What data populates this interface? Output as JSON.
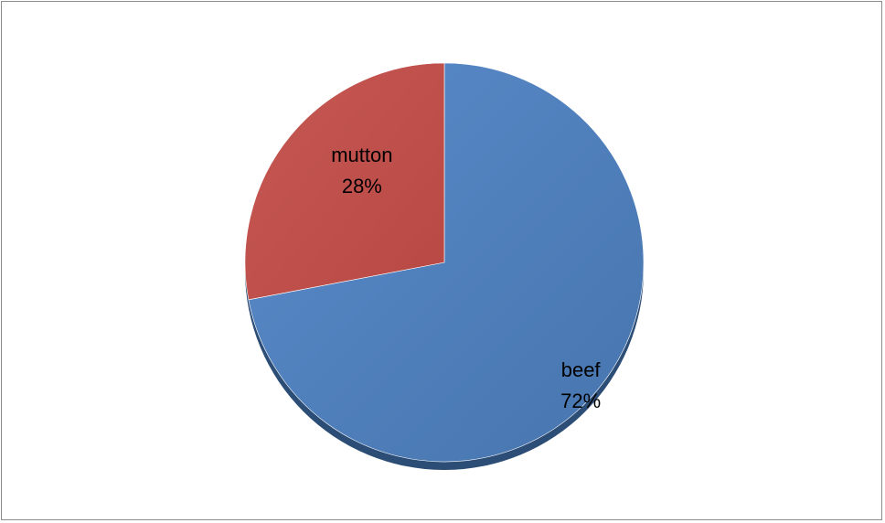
{
  "chart_data": {
    "type": "pie",
    "title": "",
    "slices": [
      {
        "label": "beef",
        "value": 72,
        "percent_label": "72%",
        "color": "#4f81bd",
        "depth_color": "#2c4d75"
      },
      {
        "label": "mutton",
        "value": 28,
        "percent_label": "28%",
        "color": "#c0504d",
        "depth_color": "#7d2f2d"
      }
    ],
    "data_labels": "category and percentage, inside slices",
    "legend": "none",
    "style": "3D pie"
  }
}
